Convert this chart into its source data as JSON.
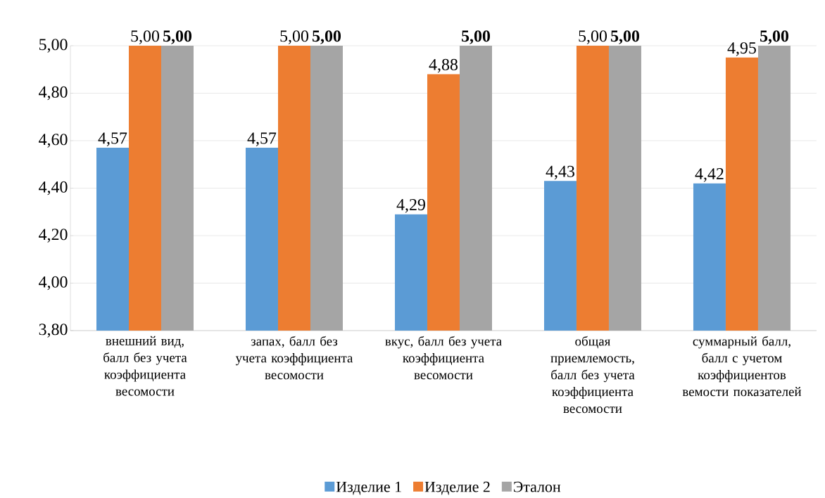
{
  "chart_data": {
    "type": "bar",
    "categories": [
      "внешний вид, балл без учета коэффициента весомости",
      "запах, балл без учета коэффициента весомости",
      "вкус, балл без учета коэффициента весомости",
      "общая приемлемость, балл без учета коэффициента весомости",
      "суммарный балл, балл с учетом коэффициентов вемости показателей"
    ],
    "series": [
      {
        "name": "Изделие 1",
        "color": "#5b9bd5",
        "values": [
          4.57,
          4.57,
          4.29,
          4.43,
          4.42
        ],
        "value_labels": [
          "4,57",
          "4,57",
          "4,29",
          "4,43",
          "4,42"
        ]
      },
      {
        "name": "Изделие 2",
        "color": "#ed7d31",
        "values": [
          5.0,
          5.0,
          4.88,
          5.0,
          4.95
        ],
        "value_labels": [
          "5,00",
          "5,00",
          "4,88",
          "5,00",
          "4,95"
        ]
      },
      {
        "name": "Эталон",
        "color": "#a5a5a5",
        "values": [
          5.0,
          5.0,
          5.0,
          5.0,
          5.0
        ],
        "value_labels": [
          "**5,00**",
          "**5,00**",
          "**5,00**",
          "**5,00**",
          "**5,00**"
        ]
      }
    ],
    "ylim": [
      3.8,
      5.0
    ],
    "yticks": [
      {
        "value": 3.8,
        "label": "3,80"
      },
      {
        "value": 4.0,
        "label": "4,00"
      },
      {
        "value": 4.2,
        "label": "4,20"
      },
      {
        "value": 4.4,
        "label": "4,40"
      },
      {
        "value": 4.6,
        "label": "4,60"
      },
      {
        "value": 4.8,
        "label": "4,80"
      },
      {
        "value": 5.0,
        "label": "5,00"
      }
    ],
    "grid": "y",
    "legend": "bottom"
  }
}
